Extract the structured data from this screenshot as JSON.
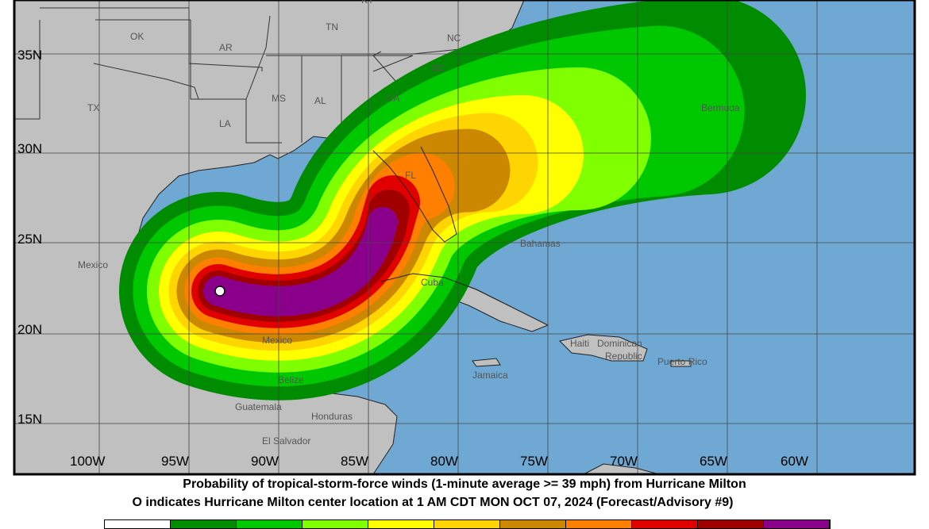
{
  "map": {
    "lon_labels": [
      "100W",
      "95W",
      "90W",
      "85W",
      "80W",
      "75W",
      "70W",
      "65W",
      "60W"
    ],
    "lat_labels": [
      "35N",
      "30N",
      "25N",
      "20N",
      "15N"
    ],
    "place_labels": {
      "ok": "OK",
      "ar": "AR",
      "tn": "TN",
      "nc": "NC",
      "sc": "SC",
      "tx": "TX",
      "ms": "MS",
      "al": "AL",
      "ga": "GA",
      "la": "LA",
      "fl": "FL",
      "ky": "KY",
      "mexico1": "Mexico",
      "mexico2": "Mexico",
      "cuba": "Cuba",
      "bahamas": "Bahamas",
      "bermuda": "Bermuda",
      "jamaica": "Jamaica",
      "haiti": "Haiti",
      "dominican": "Dominican",
      "republic": "Republic",
      "puerto_rico": "Puerto Rico",
      "belize": "Belize",
      "guatemala": "Guatemala",
      "honduras": "Honduras",
      "el_salvador": "El Salvador"
    },
    "colors": {
      "land": "#c0c0c0",
      "ocean": "#6fa8d2"
    },
    "storm_center_icon": "open-circle-icon"
  },
  "caption": {
    "line1": "Probability of tropical-storm-force winds (1-minute average >= 39 mph) from Hurricane Milton",
    "line2": "O indicates Hurricane Milton center location at 1 AM CDT MON OCT 07, 2024 (Forecast/Advisory #9)"
  },
  "legend_colors": [
    "#ffffff",
    "#008c00",
    "#00c800",
    "#80ff00",
    "#ffff00",
    "#ffd500",
    "#cc8800",
    "#ff8000",
    "#e00000",
    "#a00000",
    "#8b008b"
  ]
}
